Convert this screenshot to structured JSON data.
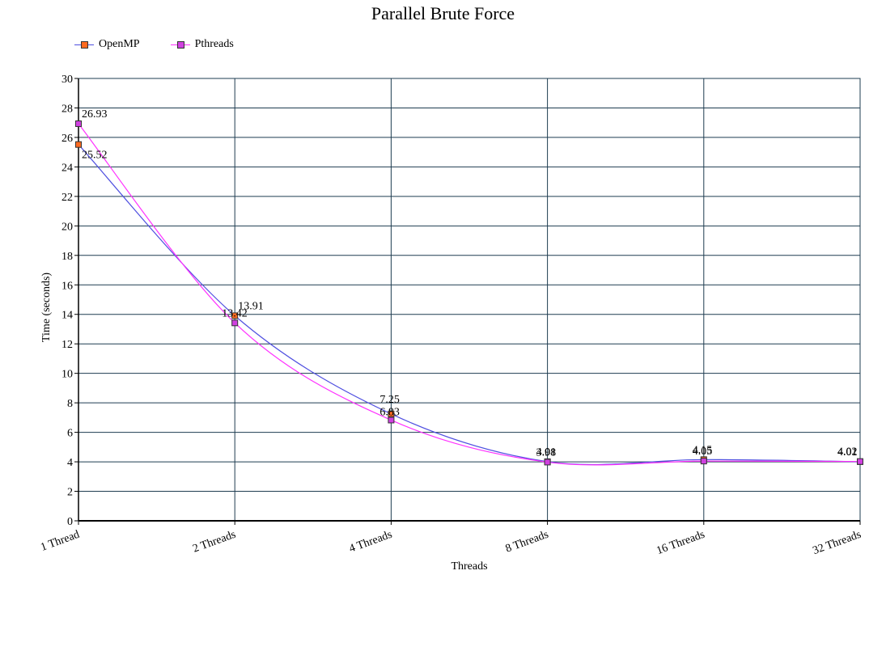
{
  "chart_data": {
    "type": "line",
    "title": "Parallel Brute Force",
    "xlabel": "Threads",
    "ylabel": "Time (seconds)",
    "categories": [
      "1 Thread",
      "2 Threads",
      "4 Threads",
      "8 Threads",
      "16 Threads",
      "32 Threads"
    ],
    "ylim": [
      0,
      30
    ],
    "yticks": [
      0,
      2,
      4,
      6,
      8,
      10,
      12,
      14,
      16,
      18,
      20,
      22,
      24,
      26,
      28,
      30
    ],
    "grid": true,
    "legend": "top-left",
    "series": [
      {
        "name": "OpenMP",
        "values": [
          25.52,
          13.91,
          7.25,
          4.01,
          4.15,
          4.01
        ],
        "labels": [
          "25.52",
          "13.91",
          "7.25",
          "4.01",
          "4.15",
          "4.01"
        ],
        "line_color": "#5050e0",
        "marker_color": "#ff6a20"
      },
      {
        "name": "Pthreads",
        "values": [
          26.93,
          13.42,
          6.83,
          3.98,
          4.05,
          4.02
        ],
        "labels": [
          "26.93",
          "13.42",
          "6.83",
          "3.98",
          "4.05",
          "4.02"
        ],
        "line_color": "#ff30ff",
        "marker_color": "#d040e0"
      }
    ]
  }
}
